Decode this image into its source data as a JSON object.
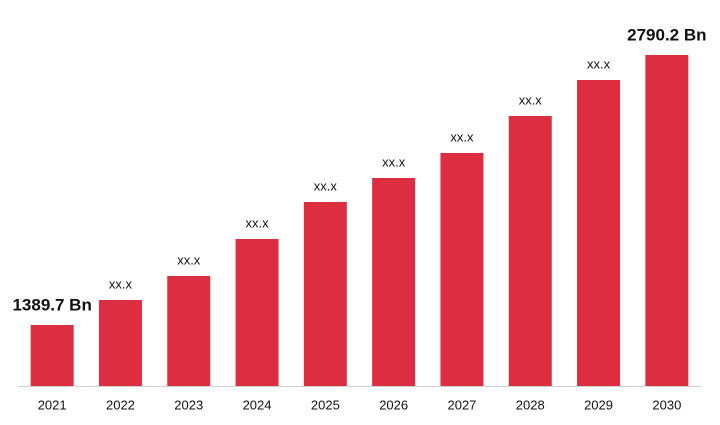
{
  "chart_data": {
    "type": "bar",
    "categories": [
      "2021",
      "2022",
      "2023",
      "2024",
      "2025",
      "2026",
      "2027",
      "2028",
      "2029",
      "2030"
    ],
    "values": [
      1389.7,
      1519.4,
      1643.9,
      1835.8,
      2027.7,
      2152.2,
      2281.9,
      2473.8,
      2660.5,
      2790.2
    ],
    "value_labels": [
      "1389.7 Bn",
      "xx.x",
      "xx.x",
      "xx.x",
      "xx.x",
      "xx.x",
      "xx.x",
      "xx.x",
      "xx.x",
      "2790.2 Bn"
    ],
    "color": "#dc2d41",
    "ylim": [
      1073.3,
      2790.2
    ]
  }
}
